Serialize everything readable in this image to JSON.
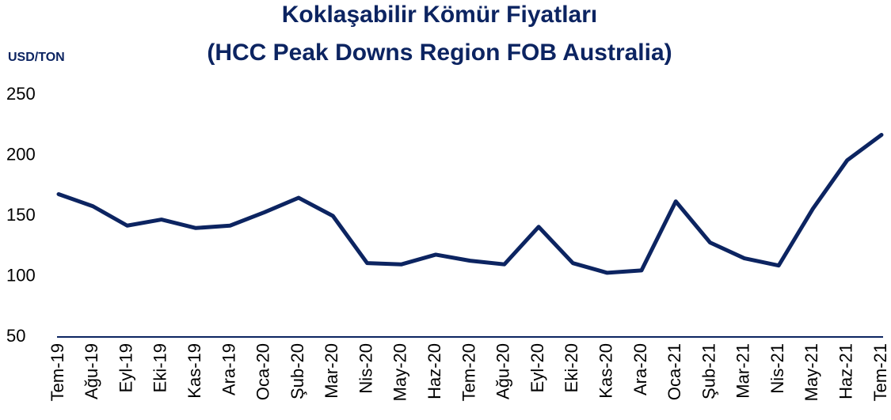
{
  "chart_data": {
    "type": "line",
    "title": "Koklaşabilir Kömür Fiyatları",
    "subtitle": "(HCC Peak Downs Region FOB Australia)",
    "y_axis_label": "USD/TON",
    "categories": [
      "Tem-19",
      "Ağu-19",
      "Eyl-19",
      "Eki-19",
      "Kas-19",
      "Ara-19",
      "Oca-20",
      "Şub-20",
      "Mar-20",
      "Nis-20",
      "May-20",
      "Haz-20",
      "Tem-20",
      "Ağu-20",
      "Eyl-20",
      "Eki-20",
      "Kas-20",
      "Ara-20",
      "Oca-21",
      "Şub-21",
      "Mar-21",
      "Nis-21",
      "May-21",
      "Haz-21",
      "Tem-21"
    ],
    "series": [
      {
        "name": "HCC Peak Downs",
        "color": "#0c2461",
        "values": [
          168,
          158,
          142,
          147,
          140,
          142,
          153,
          165,
          150,
          111,
          110,
          118,
          113,
          110,
          141,
          111,
          103,
          105,
          162,
          128,
          115,
          109,
          156,
          196,
          217
        ]
      }
    ],
    "ylim": [
      50,
      250
    ],
    "yticks": [
      50,
      100,
      150,
      200,
      250
    ],
    "grid": false
  }
}
